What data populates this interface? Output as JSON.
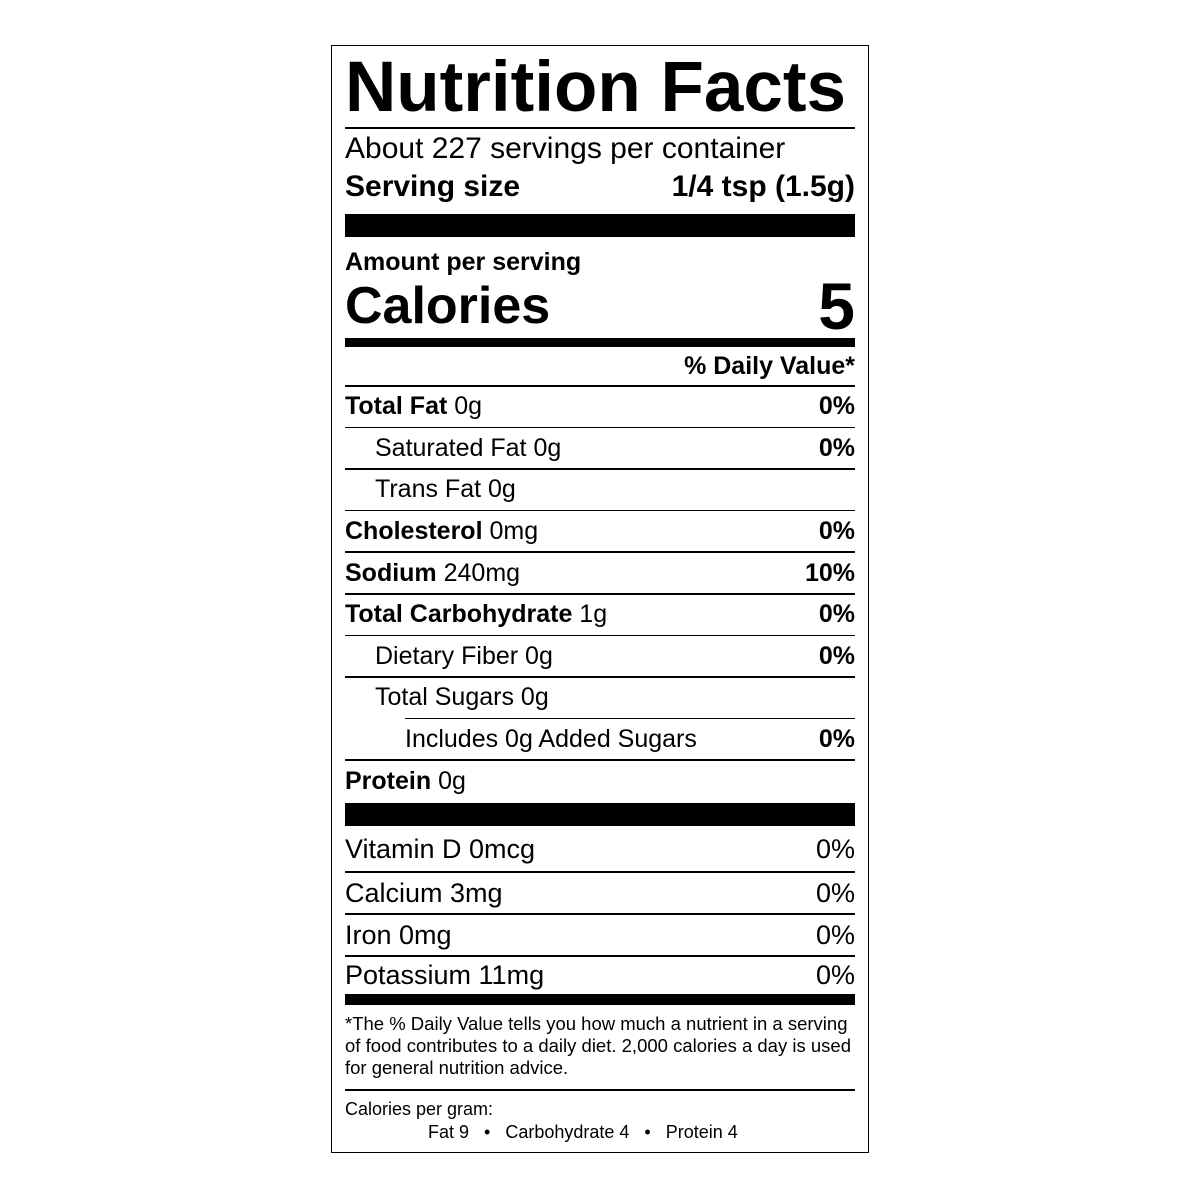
{
  "title": "Nutrition Facts",
  "servings_per_container": "About 227 servings per container",
  "serving_size": {
    "label": "Serving size",
    "value": "1/4 tsp (1.5g)"
  },
  "amount_per_serving": "Amount per serving",
  "calories": {
    "label": "Calories",
    "value": "5"
  },
  "daily_value_header": "% Daily Value*",
  "nutrients": [
    {
      "name": "Total Fat",
      "amount": "0g",
      "dv": "0%",
      "level": 0
    },
    {
      "name": "Saturated Fat",
      "amount": "0g",
      "dv": "0%",
      "level": 1
    },
    {
      "name": "Trans Fat",
      "amount": "0g",
      "dv": "",
      "level": 1
    },
    {
      "name": "Cholesterol",
      "amount": "0mg",
      "dv": "0%",
      "level": 0
    },
    {
      "name": "Sodium",
      "amount": "240mg",
      "dv": "10%",
      "level": 0
    },
    {
      "name": "Total Carbohydrate",
      "amount": "1g",
      "dv": "0%",
      "level": 0
    },
    {
      "name": "Dietary Fiber",
      "amount": "0g",
      "dv": "0%",
      "level": 1
    },
    {
      "name": "Total Sugars",
      "amount": "0g",
      "dv": "",
      "level": 1
    },
    {
      "name": "Includes 0g Added Sugars",
      "amount": "",
      "dv": "0%",
      "level": 2
    },
    {
      "name": "Protein",
      "amount": "0g",
      "dv": "",
      "level": 0
    }
  ],
  "vitamins": [
    {
      "name": "Vitamin D 0mcg",
      "dv": "0%"
    },
    {
      "name": "Calcium 3mg",
      "dv": "0%"
    },
    {
      "name": "Iron 0mg",
      "dv": "0%"
    },
    {
      "name": "Potassium 11mg",
      "dv": "0%"
    }
  ],
  "footnote": "*The % Daily Value tells you how much a nutrient in a serving of food contributes to a daily diet. 2,000 calories a day is used for general nutrition advice.",
  "calories_per_gram": {
    "label": "Calories per gram:",
    "values": "Fat 9   •   Carbohydrate 4   •   Protein 4"
  }
}
